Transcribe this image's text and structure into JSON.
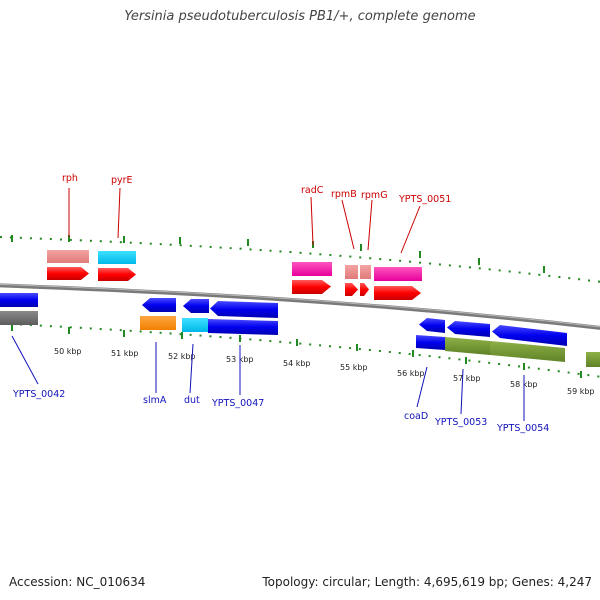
{
  "title": "Yersinia pseudotuberculosis PB1/+, complete genome",
  "footer": {
    "accession": "Accession: NC_010634",
    "summary": "Topology: circular; Length: 4,695,619 bp; Genes: 4,247"
  },
  "ruler": [
    "50 kbp",
    "51 kbp",
    "52 kbp",
    "53 kbp",
    "54 kbp",
    "55 kbp",
    "56 kbp",
    "57 kbp",
    "58 kbp",
    "59 kbp"
  ],
  "genes": {
    "forward": [
      "rph",
      "pyrE",
      "radC",
      "rpmB",
      "rpmG",
      "YPTS_0051"
    ],
    "reverse": [
      "YPTS_0042",
      "slmA",
      "dut",
      "YPTS_0047",
      "coaD",
      "YPTS_0053",
      "YPTS_0054"
    ]
  },
  "colors": {
    "forward_label": "#cc0000",
    "reverse_label": "#1111bb",
    "cds": "#ff0000",
    "cds_reverse": "#0000ee",
    "tick": "#228822"
  }
}
